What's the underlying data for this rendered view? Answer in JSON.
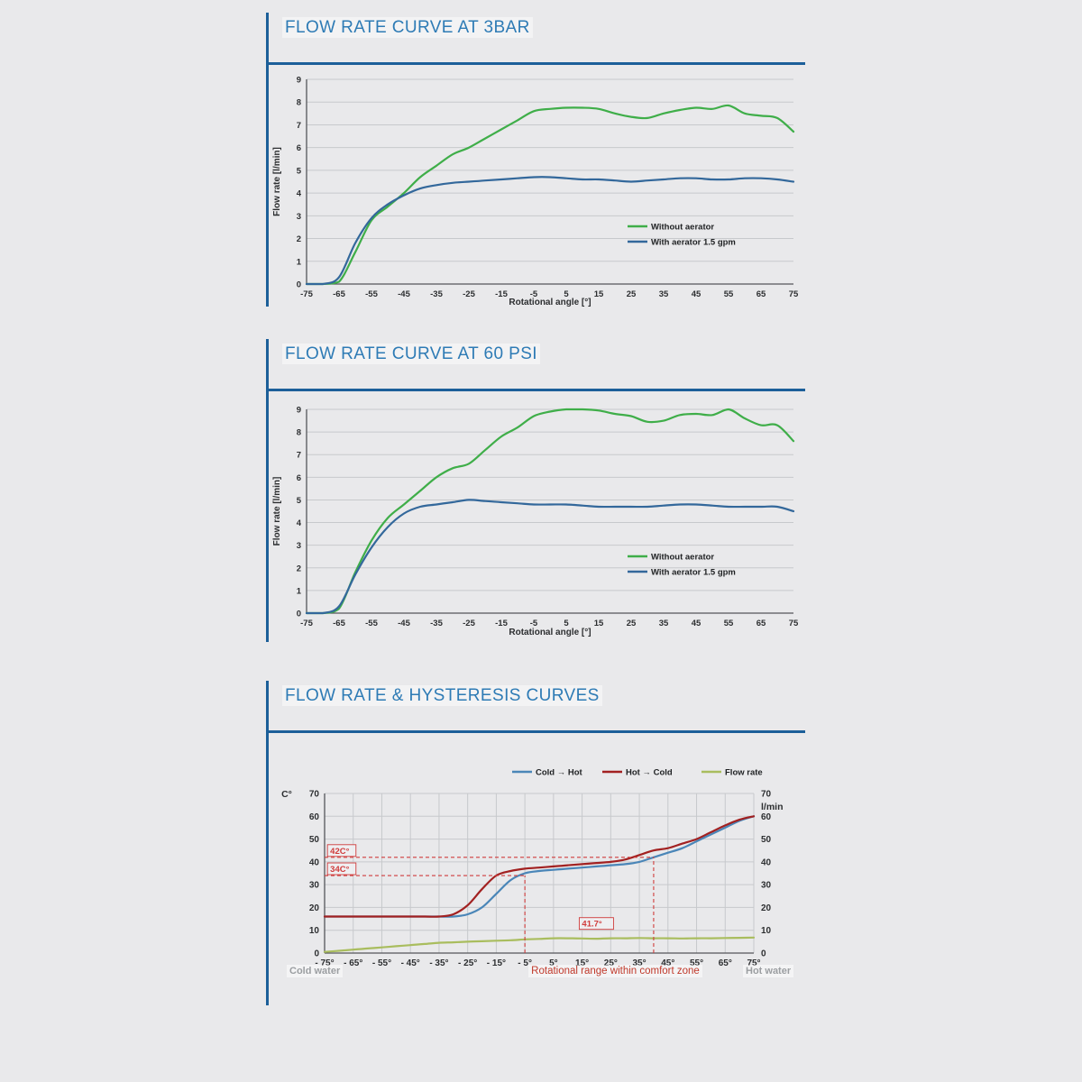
{
  "colors": {
    "accent_blue": "#1c5f99",
    "title_blue": "#2e7bb5",
    "series_green": "#3fae49",
    "series_blue": "#33689b",
    "hysteresis_blue": "#4a86b8",
    "hysteresis_red": "#a22121",
    "flowrate_olive": "#a9bd5e",
    "annotation_red": "#d03c3c",
    "footer_red": "#c0392b",
    "gray_text": "#9b9ea1",
    "grid": "#c7c9cc",
    "axis": "#54565a",
    "tick_text": "#2c2e30"
  },
  "sections": [
    {
      "title": "FLOW RATE CURVE AT 3BAR"
    },
    {
      "title": "FLOW RATE CURVE AT 60 PSI"
    },
    {
      "title": "FLOW RATE & HYSTERESIS CURVES",
      "footer": {
        "left": "Cold water",
        "center": "Rotational range within comfort zone",
        "right": "Hot water"
      }
    }
  ],
  "chart_data": [
    {
      "type": "line",
      "title": "FLOW RATE CURVE AT 3BAR",
      "xlabel": "Rotational angle [°]",
      "ylabel": "Flow rate [l/min]",
      "xlim": [
        -75,
        75
      ],
      "ylim": [
        0,
        9
      ],
      "xticks": [
        -75,
        -65,
        -55,
        -45,
        -35,
        -25,
        -15,
        -5,
        5,
        15,
        25,
        35,
        45,
        55,
        65,
        75
      ],
      "yticks": [
        0,
        1,
        2,
        3,
        4,
        5,
        6,
        7,
        8,
        9
      ],
      "grid": "horizontal",
      "legend_position": "inside-right",
      "x": [
        -75,
        -70,
        -65,
        -60,
        -55,
        -50,
        -45,
        -40,
        -35,
        -30,
        -25,
        -20,
        -15,
        -10,
        -5,
        0,
        5,
        10,
        15,
        20,
        25,
        30,
        35,
        40,
        45,
        50,
        55,
        60,
        65,
        70,
        75
      ],
      "series": [
        {
          "name": "Without aerator",
          "color": "#3fae49",
          "values": [
            0,
            0,
            0.1,
            1.4,
            2.8,
            3.4,
            4.0,
            4.7,
            5.2,
            5.7,
            6.0,
            6.4,
            6.8,
            7.2,
            7.6,
            7.7,
            7.75,
            7.75,
            7.7,
            7.5,
            7.35,
            7.3,
            7.5,
            7.65,
            7.75,
            7.7,
            7.85,
            7.5,
            7.4,
            7.3,
            6.7
          ]
        },
        {
          "name": "With aerator 1.5 gpm",
          "color": "#33689b",
          "values": [
            0,
            0,
            0.3,
            1.8,
            2.9,
            3.5,
            3.9,
            4.2,
            4.35,
            4.45,
            4.5,
            4.55,
            4.6,
            4.65,
            4.7,
            4.7,
            4.65,
            4.6,
            4.6,
            4.55,
            4.5,
            4.55,
            4.6,
            4.65,
            4.65,
            4.6,
            4.6,
            4.65,
            4.65,
            4.6,
            4.5
          ]
        }
      ]
    },
    {
      "type": "line",
      "title": "FLOW RATE CURVE AT 60 PSI",
      "xlabel": "Rotational angle [°]",
      "ylabel": "Flow rate [l/min]",
      "xlim": [
        -75,
        75
      ],
      "ylim": [
        0,
        9
      ],
      "xticks": [
        -75,
        -65,
        -55,
        -45,
        -35,
        -25,
        -15,
        -5,
        5,
        15,
        25,
        35,
        45,
        55,
        65,
        75
      ],
      "yticks": [
        0,
        1,
        2,
        3,
        4,
        5,
        6,
        7,
        8,
        9
      ],
      "grid": "horizontal",
      "legend_position": "inside-right",
      "x": [
        -75,
        -70,
        -65,
        -60,
        -55,
        -50,
        -45,
        -40,
        -35,
        -30,
        -25,
        -20,
        -15,
        -10,
        -5,
        0,
        5,
        10,
        15,
        20,
        25,
        30,
        35,
        40,
        45,
        50,
        55,
        60,
        65,
        70,
        75
      ],
      "series": [
        {
          "name": "Without aerator",
          "color": "#3fae49",
          "values": [
            0,
            0,
            0.2,
            1.8,
            3.2,
            4.2,
            4.8,
            5.4,
            6.0,
            6.4,
            6.6,
            7.2,
            7.8,
            8.2,
            8.7,
            8.9,
            9.0,
            9.0,
            8.95,
            8.8,
            8.7,
            8.45,
            8.5,
            8.75,
            8.8,
            8.75,
            9.0,
            8.6,
            8.3,
            8.3,
            7.6
          ]
        },
        {
          "name": "With aerator 1.5 gpm",
          "color": "#33689b",
          "values": [
            0,
            0,
            0.3,
            1.7,
            2.9,
            3.8,
            4.4,
            4.7,
            4.8,
            4.9,
            5.0,
            4.95,
            4.9,
            4.85,
            4.8,
            4.8,
            4.8,
            4.75,
            4.7,
            4.7,
            4.7,
            4.7,
            4.75,
            4.8,
            4.8,
            4.75,
            4.7,
            4.7,
            4.7,
            4.7,
            4.5
          ]
        }
      ]
    },
    {
      "type": "line",
      "title": "FLOW RATE & HYSTERESIS CURVES",
      "left_axis_label": "C°",
      "right_axis_label": "l/min",
      "xlim": [
        -75,
        75
      ],
      "ylim": [
        0,
        70
      ],
      "xticks": [
        -75,
        -65,
        -55,
        -45,
        -35,
        -25,
        -15,
        -5,
        5,
        15,
        25,
        35,
        45,
        55,
        65,
        75
      ],
      "xtick_labels": [
        "- 75°",
        "- 65°",
        "- 55°",
        "- 45°",
        "- 35°",
        "- 25°",
        "- 15°",
        "- 5°",
        "5°",
        "15°",
        "25°",
        "35°",
        "45°",
        "55°",
        "65°",
        "75°"
      ],
      "yticks": [
        0,
        10,
        20,
        30,
        40,
        50,
        60,
        70
      ],
      "grid": "both",
      "legend_position": "top",
      "x": [
        -75,
        -70,
        -65,
        -60,
        -55,
        -50,
        -45,
        -40,
        -35,
        -30,
        -25,
        -20,
        -15,
        -10,
        -5,
        0,
        5,
        10,
        15,
        20,
        25,
        30,
        35,
        40,
        45,
        50,
        55,
        60,
        65,
        70,
        75
      ],
      "series": [
        {
          "name": "Cold → Hot",
          "color": "#4a86b8",
          "values": [
            16,
            16,
            16,
            16,
            16,
            16,
            16,
            16,
            16,
            16,
            17,
            20,
            26,
            32,
            35,
            36,
            36.5,
            37,
            37.5,
            38,
            38.5,
            39,
            40,
            42,
            44,
            46,
            49,
            52,
            55,
            58,
            60
          ]
        },
        {
          "name": "Hot → Cold",
          "color": "#a22121",
          "values": [
            16,
            16,
            16,
            16,
            16,
            16,
            16,
            16,
            16,
            17,
            21,
            28,
            34,
            36,
            37,
            37.5,
            38,
            38.5,
            39,
            39.5,
            40,
            41,
            43,
            45,
            46,
            48,
            50,
            53,
            56,
            58.5,
            60
          ]
        },
        {
          "name": "Flow rate",
          "color": "#a9bd5e",
          "values": [
            0.5,
            1,
            1.5,
            2,
            2.5,
            3,
            3.5,
            4,
            4.5,
            4.7,
            5,
            5.2,
            5.4,
            5.6,
            6,
            6.2,
            6.5,
            6.5,
            6.4,
            6.3,
            6.5,
            6.5,
            6.6,
            6.5,
            6.5,
            6.4,
            6.5,
            6.5,
            6.6,
            6.7,
            6.8
          ]
        }
      ],
      "annotations": [
        {
          "type": "hline",
          "y": 42,
          "x_from": -75,
          "x_to": 40
        },
        {
          "type": "hline",
          "y": 34,
          "x_from": -75,
          "x_to": -5
        },
        {
          "type": "vline",
          "x": -5,
          "y_from": 0,
          "y_to": 34
        },
        {
          "type": "vline",
          "x": 40,
          "y_from": 0,
          "y_to": 42
        },
        {
          "type": "box_label",
          "text": "42C°",
          "x": -74,
          "y": 42
        },
        {
          "type": "box_label",
          "text": "34C°",
          "x": -74,
          "y": 34
        },
        {
          "type": "box_label",
          "text": "41.7°",
          "x": 14,
          "y": 10
        }
      ]
    }
  ]
}
